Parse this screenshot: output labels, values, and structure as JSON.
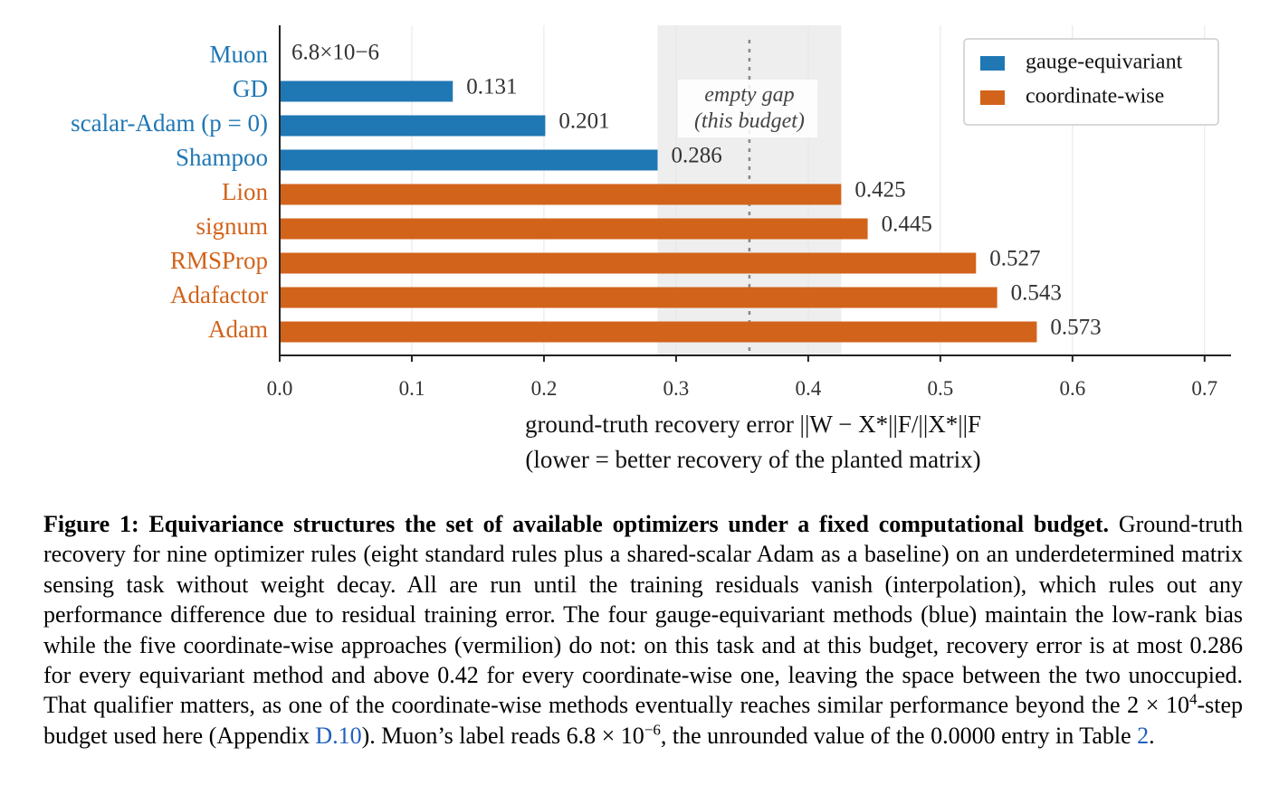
{
  "colors": {
    "gauge_equivariant": "#1f77b4",
    "coordinate_wise": "#d2631b",
    "gap_shade": "#eeeeee",
    "gridline": "#e6e6e6",
    "axis": "#222222"
  },
  "chart_data": {
    "type": "bar",
    "orientation": "horizontal",
    "categories": [
      "Muon",
      "GD",
      "scalar-Adam (p = 0)",
      "Shampoo",
      "Lion",
      "signum",
      "RMSProp",
      "Adafactor",
      "Adam"
    ],
    "values": [
      6.8e-06,
      0.131,
      0.201,
      0.286,
      0.425,
      0.445,
      0.527,
      0.543,
      0.573
    ],
    "value_labels": [
      "6.8×10−6",
      "0.131",
      "0.201",
      "0.286",
      "0.425",
      "0.445",
      "0.527",
      "0.543",
      "0.573"
    ],
    "groups": [
      "gauge-equivariant",
      "gauge-equivariant",
      "gauge-equivariant",
      "gauge-equivariant",
      "coordinate-wise",
      "coordinate-wise",
      "coordinate-wise",
      "coordinate-wise",
      "coordinate-wise"
    ],
    "series": [
      {
        "name": "gauge-equivariant",
        "color": "#1f77b4"
      },
      {
        "name": "coordinate-wise",
        "color": "#d2631b"
      }
    ],
    "xlim": [
      0,
      0.72
    ],
    "xticks": [
      0.0,
      0.1,
      0.2,
      0.3,
      0.4,
      0.5,
      0.6,
      0.7
    ],
    "xtick_labels": [
      "0.0",
      "0.1",
      "0.2",
      "0.3",
      "0.4",
      "0.5",
      "0.6",
      "0.7"
    ],
    "xlabel_line1": "ground-truth recovery error ||W − X*||F/||X*||F",
    "xlabel_line2": "(lower = better recovery of the planted matrix)",
    "gap_region": [
      0.286,
      0.425
    ],
    "gap_line_x": 0.3555,
    "gap_label_line1": "empty gap",
    "gap_label_line2": "(this budget)",
    "grid": "vertical",
    "legend_position": "top-right"
  },
  "caption": {
    "title": "Figure 1: Equivariance structures the set of available optimizers under a fixed computational budget.",
    "body_1": "Ground-truth recovery for nine optimizer rules (eight standard rules plus a shared-scalar Adam as a baseline) on an underdetermined matrix sensing task without weight decay. All are run until the training residuals vanish (interpolation), which rules out any performance difference due to residual training error. The four gauge-equivariant methods (blue) maintain the low-rank bias while the five coordinate-wise approaches (vermilion) do not: on this task and at this budget, recovery error is at most 0.286 for every equivariant method and above 0.42 for every coordinate-wise one, leaving the space between the two unoccupied. That qualifier matters, as one of the coordinate-wise methods eventually reaches similar performance beyond the 2 × 10",
    "body_1_sup": "4",
    "body_2": "-step budget used here (Appendix ",
    "ref_appendix": "D.10",
    "body_3": "). Muon’s label reads 6.8 × 10",
    "body_3_sup": "−6",
    "body_4": ", the unrounded value of the 0.0000 entry in Table ",
    "ref_table": "2",
    "body_5": "."
  }
}
